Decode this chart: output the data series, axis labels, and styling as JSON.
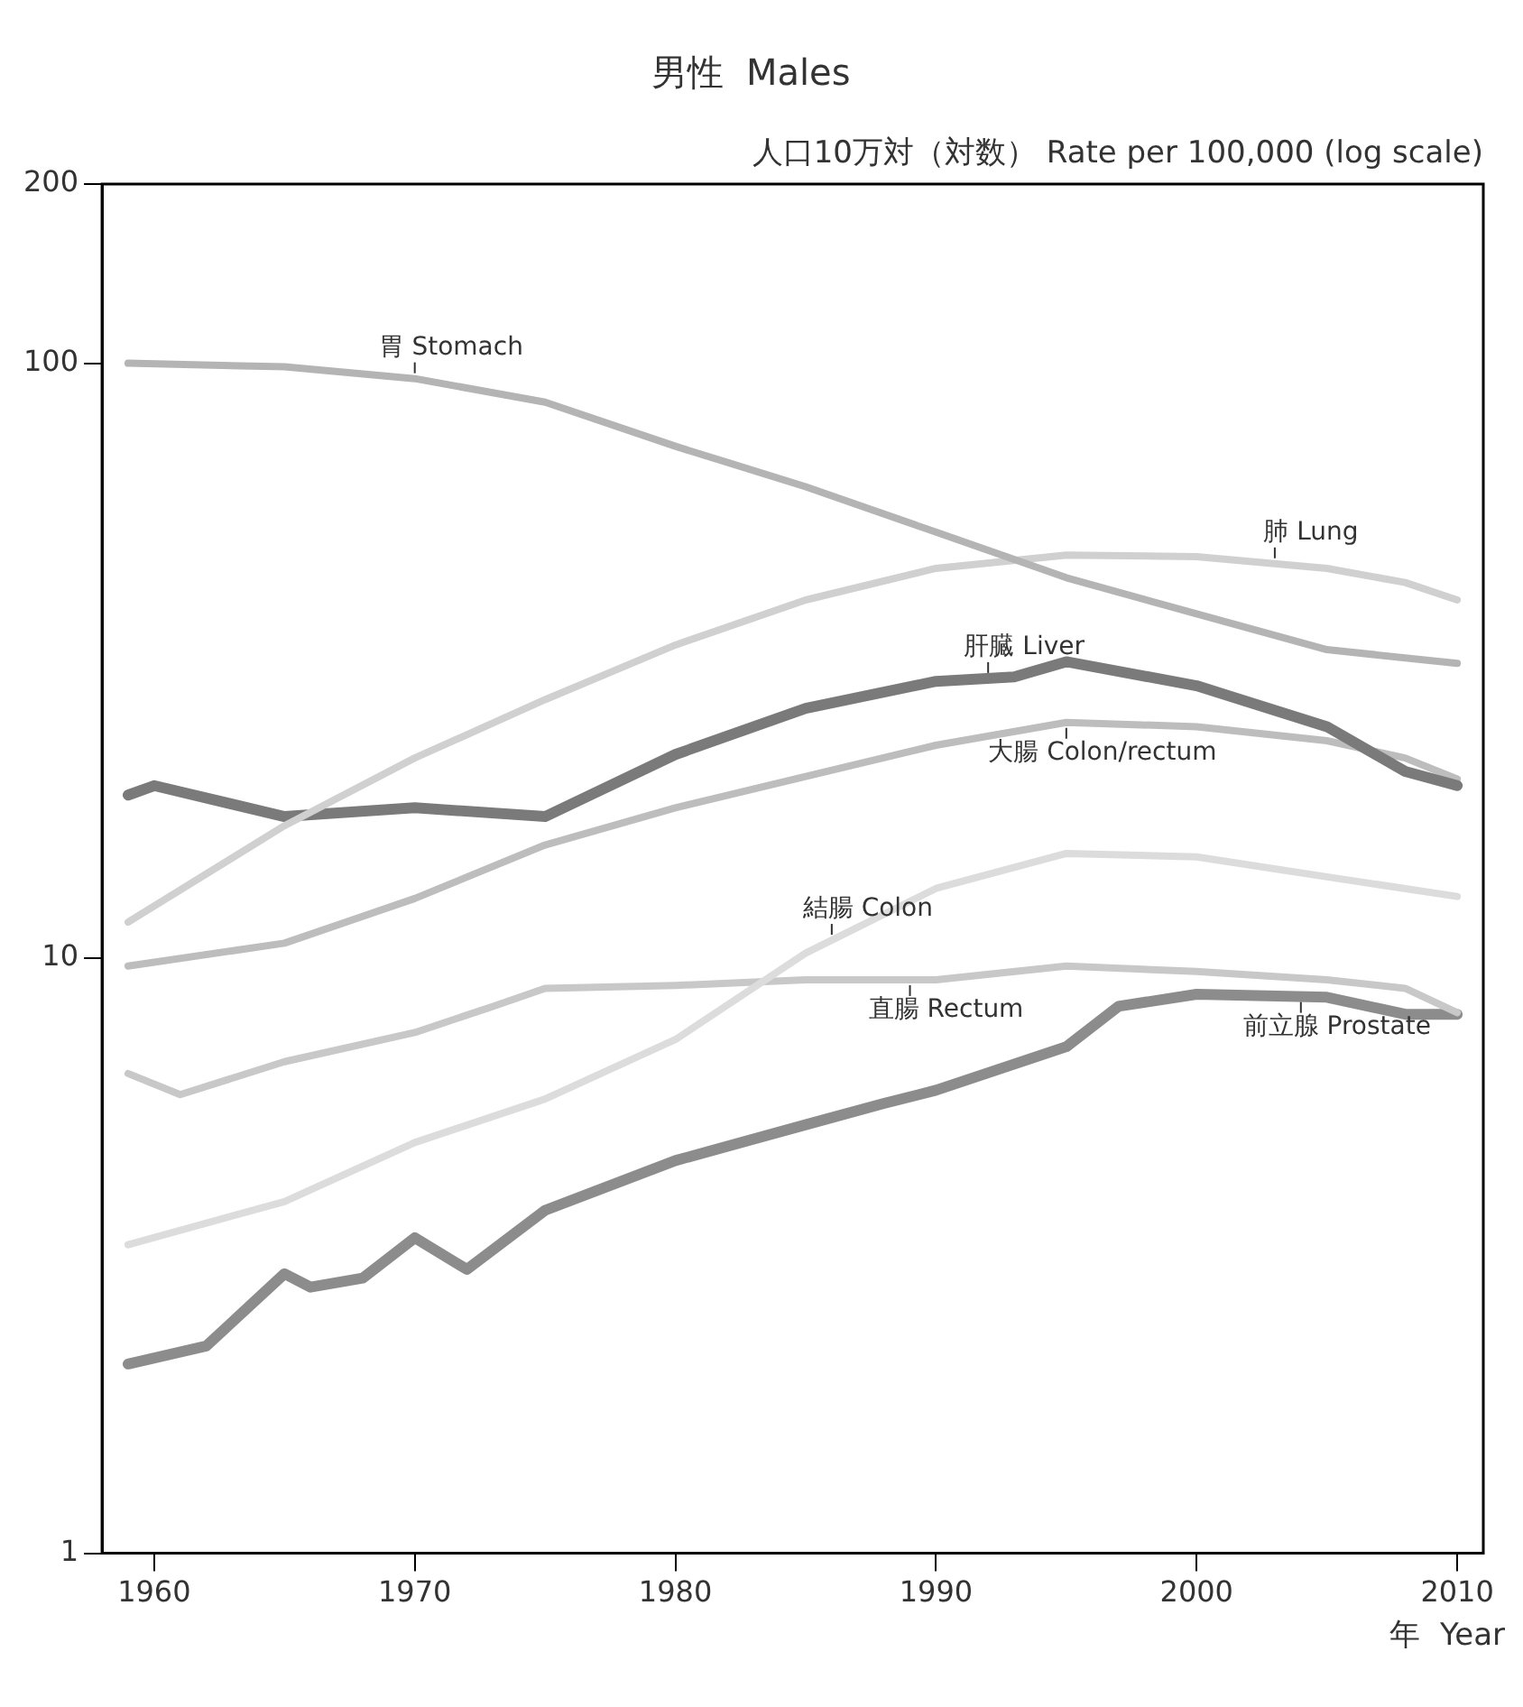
{
  "chart_data": {
    "type": "line",
    "title": "男性  Males",
    "ylabel": "人口10万対（対数） Rate per 100,000 (log scale)",
    "xlabel": "年  Year",
    "xlim": [
      1958,
      2011
    ],
    "xticks": [
      1960,
      1970,
      1980,
      1990,
      2000,
      2010
    ],
    "ylim": [
      1,
      200
    ],
    "yticks": [
      1,
      10,
      100,
      200
    ],
    "log": "y",
    "grid": false,
    "legend": false,
    "marker": "none",
    "line_style": "solid",
    "series": [
      {
        "name": "胃 Stomach",
        "color": "#b4b4b4",
        "x": [
          1959,
          1965,
          1970,
          1975,
          1980,
          1985,
          1990,
          1995,
          2000,
          2005,
          2010
        ],
        "values": [
          100,
          98.6,
          94.2,
          86,
          72.5,
          62,
          52,
          43.6,
          37.9,
          33,
          31.3
        ]
      },
      {
        "name": "肺 Lung",
        "color": "#d0d0d0",
        "x": [
          1959,
          1965,
          1970,
          1975,
          1980,
          1985,
          1990,
          1995,
          2000,
          2005,
          2008,
          2010
        ],
        "values": [
          11.5,
          16.7,
          21.7,
          27.2,
          33.6,
          40,
          45.2,
          47.6,
          47.3,
          45.2,
          42.8,
          40
        ]
      },
      {
        "name": "肝臓 Liver",
        "color": "#7a7a7a",
        "x": [
          1959,
          1960,
          1965,
          1970,
          1975,
          1980,
          1985,
          1990,
          1993,
          1995,
          2000,
          2005,
          2008,
          2010
        ],
        "values": [
          18.8,
          19.5,
          17.3,
          17.9,
          17.3,
          22,
          26.3,
          29.2,
          29.7,
          31.5,
          28.7,
          24.5,
          20.6,
          19.5
        ]
      },
      {
        "name": "大腸 Colon/rectum",
        "color": "#bdbdbd",
        "x": [
          1959,
          1965,
          1970,
          1975,
          1980,
          1985,
          1990,
          1995,
          2000,
          2005,
          2008,
          2010
        ],
        "values": [
          9.7,
          10.6,
          12.6,
          15.5,
          17.9,
          20.2,
          22.8,
          24.9,
          24.5,
          23.2,
          21.7,
          20
        ]
      },
      {
        "name": "結腸 Colon",
        "color": "#dcdcdc",
        "x": [
          1959,
          1965,
          1970,
          1975,
          1980,
          1985,
          1990,
          1995,
          2000,
          2005,
          2010
        ],
        "values": [
          3.3,
          3.9,
          4.9,
          5.8,
          7.3,
          10.2,
          13.1,
          15,
          14.8,
          13.7,
          12.7
        ]
      },
      {
        "name": "直腸 Rectum",
        "color": "#c8c8c8",
        "x": [
          1959,
          1961,
          1965,
          1970,
          1973,
          1975,
          1980,
          1985,
          1990,
          1995,
          2000,
          2005,
          2008,
          2010
        ],
        "values": [
          6.4,
          5.9,
          6.7,
          7.5,
          8.3,
          8.9,
          9,
          9.2,
          9.2,
          9.7,
          9.5,
          9.2,
          8.9,
          8.1
        ]
      },
      {
        "name": "前立腺 Prostate",
        "color": "#8c8c8c",
        "x": [
          1959,
          1962,
          1965,
          1966,
          1968,
          1970,
          1972,
          1975,
          1980,
          1985,
          1988,
          1990,
          1995,
          1997,
          2000,
          2005,
          2008,
          2010
        ],
        "values": [
          2.08,
          2.23,
          2.95,
          2.8,
          2.9,
          3.39,
          3,
          3.77,
          4.57,
          5.25,
          5.7,
          6,
          7.1,
          8.3,
          8.7,
          8.6,
          8.05,
          8.05
        ]
      }
    ]
  }
}
